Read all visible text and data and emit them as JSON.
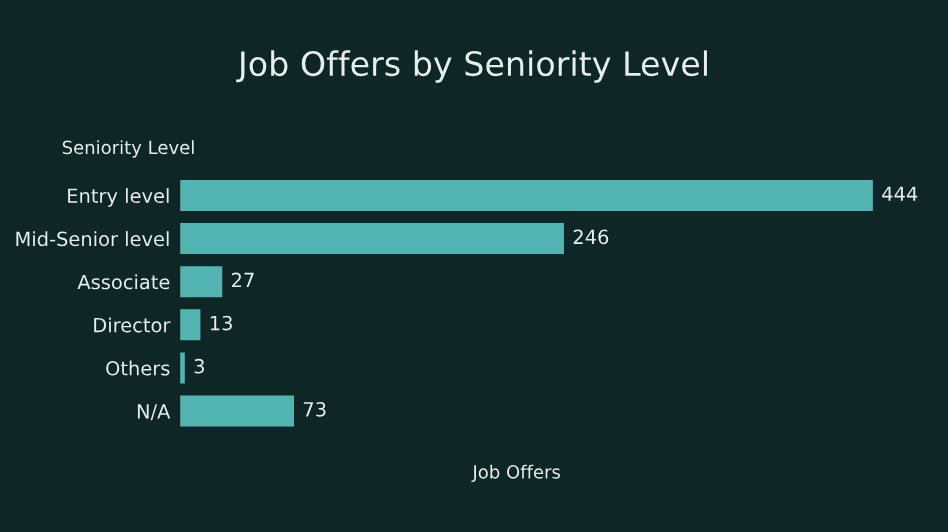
{
  "chart_data": {
    "type": "bar",
    "orientation": "horizontal",
    "title": "Job Offers by Seniority Level",
    "ylabel": "Seniority Level",
    "xlabel": "Job Offers",
    "categories": [
      "Entry level",
      "Mid-Senior level",
      "Associate",
      "Director",
      "Others",
      "N/A"
    ],
    "values": [
      444,
      246,
      27,
      13,
      3,
      73
    ],
    "color": "#52b5b1",
    "data_labels": true,
    "grid": false,
    "legend": false
  }
}
